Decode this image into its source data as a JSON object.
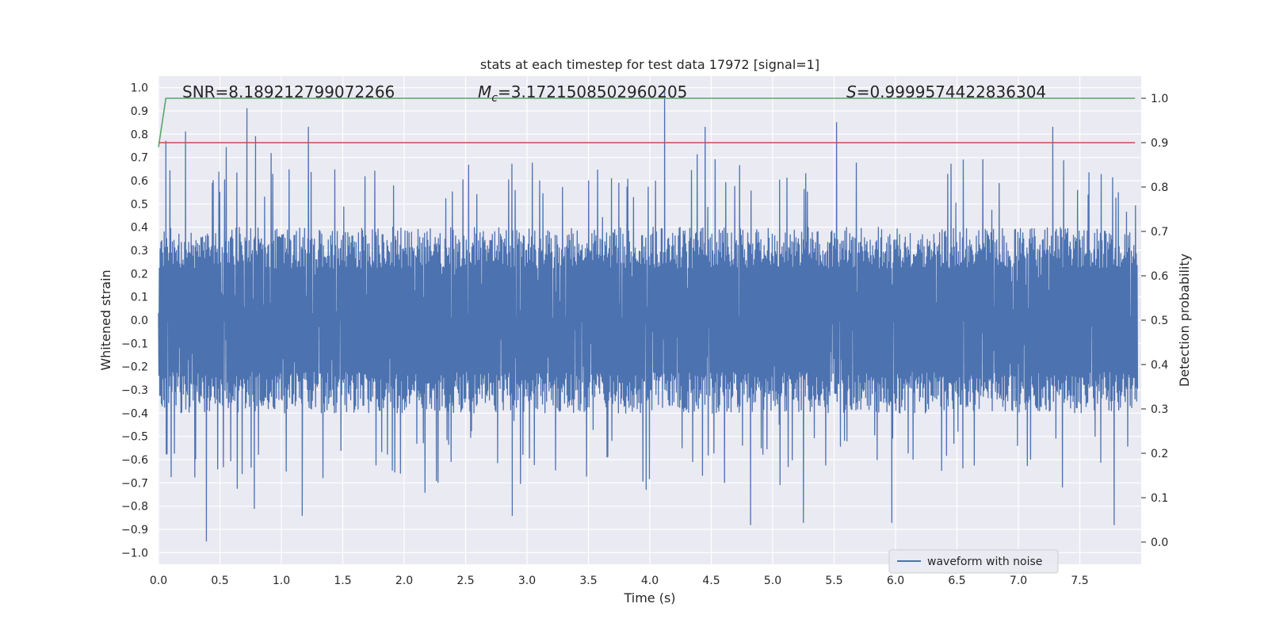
{
  "chart_data": {
    "type": "line",
    "title": "stats at each timestep for test data 17972 [signal=1]",
    "xlabel": "Time (s)",
    "ylabel_left": "Whitened strain",
    "ylabel_right": "Detection probability",
    "xlim": [
      0.0,
      8.0
    ],
    "ylim_left": [
      -1.05,
      1.05
    ],
    "ylim_right": [
      -0.05,
      1.05
    ],
    "xticks": [
      "0.0",
      "0.5",
      "1.0",
      "1.5",
      "2.0",
      "2.5",
      "3.0",
      "3.5",
      "4.0",
      "4.5",
      "5.0",
      "5.5",
      "6.0",
      "6.5",
      "7.0",
      "7.5"
    ],
    "yticks_left": [
      "1.0",
      "0.9",
      "0.8",
      "0.7",
      "0.6",
      "0.5",
      "0.4",
      "0.3",
      "0.2",
      "0.1",
      "0.0",
      "−0.1",
      "−0.2",
      "−0.3",
      "−0.4",
      "−0.5",
      "−0.6",
      "−0.7",
      "−0.8",
      "−0.9",
      "−1.0"
    ],
    "yticks_right": [
      "1.0",
      "0.9",
      "0.8",
      "0.7",
      "0.6",
      "0.5",
      "0.4",
      "0.3",
      "0.2",
      "0.1",
      "0.0"
    ],
    "grid": true,
    "legend_position": "lower-right",
    "annotations": {
      "snr": "SNR=8.189212799072266",
      "mc_symbol": "M",
      "mc_sub": "c",
      "mc_value": "=3.1721508502960205",
      "s_symbol": "S",
      "s_value": "=0.9999574422836304"
    },
    "series": [
      {
        "name": "waveform with noise",
        "color": "#4c72b0",
        "axis": "left",
        "style": "dense-noise",
        "typical_amplitude": 0.4,
        "peaks": [
          {
            "x": 0.06,
            "y": 0.77
          },
          {
            "x": 0.22,
            "y": 0.81
          },
          {
            "x": 0.72,
            "y": 0.91
          },
          {
            "x": 0.79,
            "y": 0.79
          },
          {
            "x": 1.22,
            "y": 0.83
          },
          {
            "x": 4.12,
            "y": 1.0
          },
          {
            "x": 4.45,
            "y": 0.83
          },
          {
            "x": 5.52,
            "y": 0.85
          },
          {
            "x": 7.28,
            "y": 0.83
          },
          {
            "x": 0.39,
            "y": -0.95
          },
          {
            "x": 0.78,
            "y": -0.81
          },
          {
            "x": 1.17,
            "y": -0.84
          },
          {
            "x": 2.88,
            "y": -0.84
          },
          {
            "x": 4.82,
            "y": -0.88
          },
          {
            "x": 5.25,
            "y": -0.87
          },
          {
            "x": 5.97,
            "y": -0.87
          },
          {
            "x": 7.78,
            "y": -0.88
          }
        ]
      },
      {
        "name": "",
        "color": "#55a868",
        "axis": "right",
        "x": [
          0.0,
          0.06,
          7.95
        ],
        "values": [
          0.89,
          1.0,
          1.0
        ]
      },
      {
        "name": "",
        "color": "#c44e52",
        "axis": "right",
        "x": [
          0.0,
          7.95
        ],
        "values": [
          0.9,
          0.9
        ]
      }
    ]
  }
}
